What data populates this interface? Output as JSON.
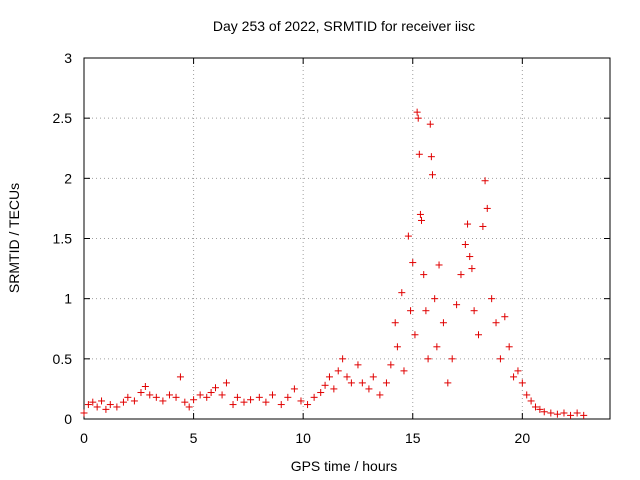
{
  "chart_data": {
    "type": "scatter",
    "title": "Day 253 of 2022, SRMTID for receiver iisc",
    "xlabel": "GPS time / hours",
    "ylabel": "SRMTID / TECUs",
    "xlim": [
      0,
      24
    ],
    "ylim": [
      0,
      3
    ],
    "xticks": [
      0,
      5,
      10,
      15,
      20
    ],
    "yticks": [
      0,
      0.5,
      1,
      1.5,
      2,
      2.5,
      3
    ],
    "ytick_labels": [
      "0",
      "0.5",
      "1",
      "1.5",
      "2",
      "2.5",
      "3"
    ],
    "grid": true,
    "marker": "+",
    "color": "#e00000",
    "series": [
      {
        "name": "SRMTID",
        "points": [
          [
            0.0,
            0.05
          ],
          [
            0.2,
            0.12
          ],
          [
            0.4,
            0.14
          ],
          [
            0.6,
            0.1
          ],
          [
            0.8,
            0.15
          ],
          [
            1.0,
            0.08
          ],
          [
            1.2,
            0.12
          ],
          [
            1.5,
            0.1
          ],
          [
            1.8,
            0.14
          ],
          [
            2.0,
            0.18
          ],
          [
            2.3,
            0.15
          ],
          [
            2.6,
            0.22
          ],
          [
            2.8,
            0.27
          ],
          [
            3.0,
            0.2
          ],
          [
            3.3,
            0.18
          ],
          [
            3.6,
            0.15
          ],
          [
            3.9,
            0.2
          ],
          [
            4.2,
            0.18
          ],
          [
            4.4,
            0.35
          ],
          [
            4.6,
            0.14
          ],
          [
            4.8,
            0.1
          ],
          [
            5.0,
            0.16
          ],
          [
            5.3,
            0.2
          ],
          [
            5.6,
            0.18
          ],
          [
            5.8,
            0.22
          ],
          [
            6.0,
            0.26
          ],
          [
            6.3,
            0.2
          ],
          [
            6.5,
            0.3
          ],
          [
            6.8,
            0.12
          ],
          [
            7.0,
            0.18
          ],
          [
            7.3,
            0.14
          ],
          [
            7.6,
            0.16
          ],
          [
            8.0,
            0.18
          ],
          [
            8.3,
            0.14
          ],
          [
            8.6,
            0.2
          ],
          [
            9.0,
            0.12
          ],
          [
            9.3,
            0.18
          ],
          [
            9.6,
            0.25
          ],
          [
            9.9,
            0.15
          ],
          [
            10.2,
            0.12
          ],
          [
            10.5,
            0.18
          ],
          [
            10.8,
            0.22
          ],
          [
            11.0,
            0.28
          ],
          [
            11.2,
            0.35
          ],
          [
            11.4,
            0.25
          ],
          [
            11.6,
            0.4
          ],
          [
            11.8,
            0.5
          ],
          [
            12.0,
            0.35
          ],
          [
            12.2,
            0.3
          ],
          [
            12.5,
            0.45
          ],
          [
            12.7,
            0.3
          ],
          [
            13.0,
            0.25
          ],
          [
            13.2,
            0.35
          ],
          [
            13.5,
            0.2
          ],
          [
            13.8,
            0.3
          ],
          [
            14.0,
            0.45
          ],
          [
            14.2,
            0.8
          ],
          [
            14.3,
            0.6
          ],
          [
            14.5,
            1.05
          ],
          [
            14.6,
            0.4
          ],
          [
            14.8,
            1.52
          ],
          [
            14.9,
            0.9
          ],
          [
            15.0,
            1.3
          ],
          [
            15.1,
            0.7
          ],
          [
            15.2,
            2.55
          ],
          [
            15.25,
            2.5
          ],
          [
            15.3,
            2.2
          ],
          [
            15.35,
            1.7
          ],
          [
            15.4,
            1.65
          ],
          [
            15.5,
            1.2
          ],
          [
            15.6,
            0.9
          ],
          [
            15.7,
            0.5
          ],
          [
            15.8,
            2.45
          ],
          [
            15.85,
            2.18
          ],
          [
            15.9,
            2.03
          ],
          [
            16.0,
            1.0
          ],
          [
            16.1,
            0.6
          ],
          [
            16.2,
            1.28
          ],
          [
            16.4,
            0.8
          ],
          [
            16.6,
            0.3
          ],
          [
            16.8,
            0.5
          ],
          [
            17.0,
            0.95
          ],
          [
            17.2,
            1.2
          ],
          [
            17.4,
            1.45
          ],
          [
            17.5,
            1.62
          ],
          [
            17.6,
            1.35
          ],
          [
            17.7,
            1.25
          ],
          [
            17.8,
            0.9
          ],
          [
            18.0,
            0.7
          ],
          [
            18.2,
            1.6
          ],
          [
            18.3,
            1.98
          ],
          [
            18.4,
            1.75
          ],
          [
            18.6,
            1.0
          ],
          [
            18.8,
            0.8
          ],
          [
            19.0,
            0.5
          ],
          [
            19.2,
            0.85
          ],
          [
            19.4,
            0.6
          ],
          [
            19.6,
            0.35
          ],
          [
            19.8,
            0.4
          ],
          [
            20.0,
            0.3
          ],
          [
            20.2,
            0.2
          ],
          [
            20.4,
            0.15
          ],
          [
            20.6,
            0.1
          ],
          [
            20.8,
            0.08
          ],
          [
            21.0,
            0.06
          ],
          [
            21.3,
            0.05
          ],
          [
            21.6,
            0.04
          ],
          [
            21.9,
            0.05
          ],
          [
            22.2,
            0.03
          ],
          [
            22.5,
            0.05
          ],
          [
            22.8,
            0.03
          ]
        ]
      }
    ]
  }
}
